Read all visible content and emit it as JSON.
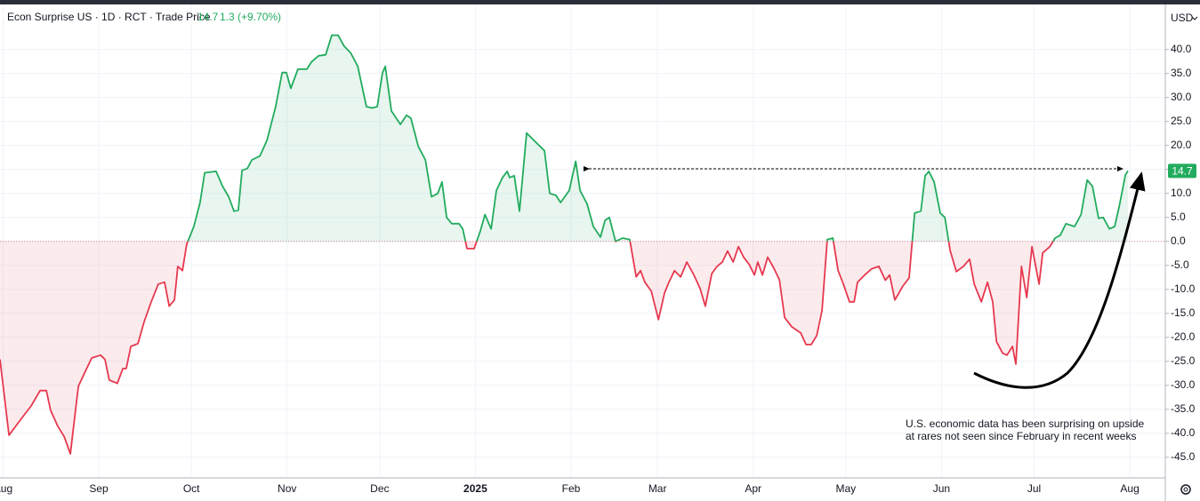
{
  "chart_data": {
    "type": "line",
    "title": "Econ Surprise US · 1D · RCT · Trade Price",
    "change_text": "1.3 (+9.70%)",
    "currency": "USD",
    "annotation": [
      "U.S. economic data has been surprising on upside",
      "at rares not seen since February in recent weeks"
    ],
    "x": [
      0,
      2.9,
      7.2,
      10.1,
      13.0,
      15.0,
      16.4,
      18.7,
      20.8,
      22.8,
      25.4,
      27.4,
      29.7,
      32.6,
      34.0,
      35.4,
      38.0,
      39.8,
      40.9,
      42.4,
      44.7,
      46.7,
      49.0,
      51.3,
      53.3,
      54.8,
      56.5,
      57.6,
      59.1,
      60.5,
      62.8,
      64.8,
      66.3,
      70.0,
      72.1,
      74.1,
      75.8,
      77.2,
      78.4,
      80.1,
      81.6,
      84.2,
      86.5,
      89.3,
      91.4,
      92.8,
      94.2,
      96.5,
      99.4,
      100.9,
      103.2,
      105.5,
      107.5,
      109.5,
      111.5,
      113.6,
      115.9,
      118.7,
      120.5,
      122.2,
      123.9,
      124.8,
      126.8,
      129.7,
      131.7,
      133.1,
      135.5,
      137.8,
      139.8,
      141.8,
      143.2,
      144.7,
      146.4,
      148.7,
      149.9,
      151.3,
      153.6,
      155.6,
      157.1,
      159.1,
      160.8,
      162.8,
      164.3,
      165.1,
      166.6,
      168.3,
      170.6,
      172.9,
      176.4,
      178.1,
      180.1,
      181.6,
      184.4,
      186.5,
      187.9,
      190.2,
      192.2,
      194.5,
      196.0,
      197.4,
      199.4,
      201.7,
      204.0,
      206.1,
      207.5,
      208.9,
      211.0,
      213.3,
      215.3,
      216.7,
      218.5,
      220.5,
      222.5,
      224.8,
      226.8,
      228.5,
      230.6,
      232.3,
      234.0,
      235.7,
      237.5,
      239.2,
      240.9,
      242.7,
      244.4,
      245.5,
      247.0,
      248.7,
      250.7,
      252.5,
      254.2,
      256.5,
      259.4,
      261.1,
      262.8,
      264.6,
      266.3,
      268.0,
      269.8,
      271.5,
      273.2,
      275.2,
      276.7,
      277.8,
      280.1,
      282.4,
      284.7,
      286.8,
      288.2,
      289.9,
      292.5,
      294.5,
      296.3,
      298.3,
      299.7,
      300.9,
      302.6,
      304.6,
      306.1,
      307.8,
      309.8,
      312.1,
      314.1,
      315.6,
      317.9,
      319.9,
      321.6,
      322.8,
      324.8,
      326.2,
      328.0,
      329.1,
      330.9,
      332.6,
      334.3,
      336.6,
      337.8,
      340.1,
      341.8,
      343.5,
      345.3,
      348.1,
      350.2,
      352.2,
      353.9,
      355.9,
      357.4,
      359.4,
      361.1,
      362.6,
      364.6,
      365.4
    ],
    "series": [
      {
        "name": "Econ Surprise US",
        "color": "#22ab5e",
        "negative_color": "#e6394f",
        "values": [
          -24.6,
          -40.4,
          -36.7,
          -34.3,
          -31.1,
          -31.1,
          -35.2,
          -38.5,
          -40.7,
          -44.3,
          -30.2,
          -27.4,
          -24.3,
          -23.7,
          -24.6,
          -28.9,
          -29.6,
          -26.5,
          -26.5,
          -21.9,
          -21.3,
          -16.7,
          -12.6,
          -8.9,
          -8.5,
          -13.5,
          -12.2,
          -5.2,
          -6.1,
          -0.6,
          3.1,
          8.1,
          14.3,
          14.6,
          11.5,
          9.3,
          6.3,
          6.5,
          14.8,
          15.2,
          17.0,
          17.8,
          21.1,
          28.1,
          35.2,
          35.2,
          31.9,
          35.9,
          35.9,
          37.4,
          38.7,
          38.9,
          43.0,
          43.0,
          40.7,
          39.3,
          36.5,
          28.1,
          27.8,
          28.1,
          35.2,
          36.5,
          27.2,
          24.4,
          26.3,
          25.7,
          19.8,
          17.0,
          9.3,
          10.0,
          12.4,
          5.0,
          3.7,
          3.7,
          2.6,
          -1.5,
          -1.5,
          2.2,
          5.6,
          2.6,
          10.6,
          13.3,
          14.6,
          13.3,
          13.7,
          6.3,
          22.6,
          21.1,
          18.9,
          10.0,
          9.6,
          8.1,
          10.6,
          16.7,
          10.6,
          7.8,
          3.1,
          0.9,
          4.4,
          5.0,
          0.0,
          0.7,
          0.4,
          -7.4,
          -6.1,
          -8.5,
          -10.4,
          -16.3,
          -10.7,
          -8.5,
          -6.1,
          -7.4,
          -4.3,
          -7.0,
          -9.8,
          -13.5,
          -6.7,
          -5.2,
          -4.3,
          -2.0,
          -4.3,
          -1.1,
          -3.3,
          -4.8,
          -7.0,
          -4.3,
          -7.0,
          -3.3,
          -5.6,
          -8.0,
          -15.9,
          -17.8,
          -19.1,
          -21.5,
          -21.5,
          -19.6,
          -14.4,
          0.4,
          0.7,
          -6.1,
          -8.9,
          -12.6,
          -12.6,
          -8.5,
          -7.0,
          -5.7,
          -5.2,
          -8.1,
          -7.0,
          -12.2,
          -9.3,
          -7.6,
          5.9,
          6.3,
          13.7,
          14.6,
          12.4,
          5.9,
          5.0,
          -1.9,
          -6.3,
          -5.2,
          -3.7,
          -8.9,
          -12.6,
          -8.5,
          -12.6,
          -20.9,
          -23.3,
          -23.7,
          -21.9,
          -25.6,
          -5.2,
          -11.7,
          -1.1,
          -8.9,
          -2.4,
          -1.1,
          0.7,
          1.3,
          3.7,
          3.1,
          5.6,
          12.8,
          11.5,
          4.8,
          5.0,
          2.6,
          3.1,
          7.4,
          13.9,
          14.7
        ]
      }
    ],
    "xlim": [
      0,
      377.5
    ],
    "xticks": [
      {
        "value": 1,
        "label": "Aug"
      },
      {
        "value": 32,
        "label": "Sep"
      },
      {
        "value": 62,
        "label": "Oct"
      },
      {
        "value": 93,
        "label": "Nov"
      },
      {
        "value": 123,
        "label": "Dec"
      },
      {
        "value": 154,
        "label": "2025"
      },
      {
        "value": 185,
        "label": "Feb"
      },
      {
        "value": 213,
        "label": "Mar"
      },
      {
        "value": 244,
        "label": "Apr"
      },
      {
        "value": 274,
        "label": "May"
      },
      {
        "value": 305,
        "label": "Jun"
      },
      {
        "value": 335,
        "label": "Jul"
      },
      {
        "value": 366,
        "label": "Aug"
      }
    ],
    "ylim": [
      -49.3,
      49.4
    ],
    "yticks": [
      {
        "value": 40,
        "label": "40.0"
      },
      {
        "value": 35,
        "label": "35.0"
      },
      {
        "value": 30,
        "label": "30.0"
      },
      {
        "value": 25,
        "label": "25.0"
      },
      {
        "value": 20,
        "label": "20.0"
      },
      {
        "value": 15,
        "label": "15.0"
      },
      {
        "value": 10,
        "label": "10.0"
      },
      {
        "value": 5,
        "label": "5.0"
      },
      {
        "value": 0,
        "label": "0.0"
      },
      {
        "value": -5,
        "label": "-5.0"
      },
      {
        "value": -10,
        "label": "-10.0"
      },
      {
        "value": -15,
        "label": "-15.0"
      },
      {
        "value": -20,
        "label": "-20.0"
      },
      {
        "value": -25,
        "label": "-25.0"
      },
      {
        "value": -30,
        "label": "-30.0"
      },
      {
        "value": -35,
        "label": "-35.0"
      },
      {
        "value": -40,
        "label": "-40.0"
      },
      {
        "value": -45,
        "label": "-45.0"
      }
    ],
    "grid": true
  }
}
